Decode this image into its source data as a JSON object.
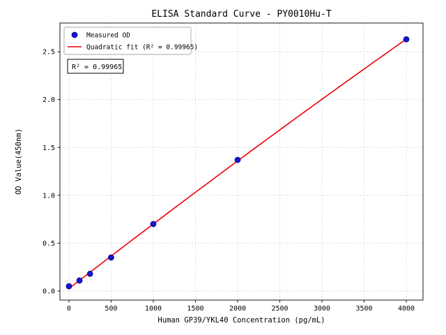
{
  "chart_data": {
    "type": "scatter",
    "title": "ELISA Standard Curve - PY0010Hu-T",
    "xlabel": "Human GP39/YKL40 Concentration (pg/mL)",
    "ylabel": "OD Value(450nm)",
    "x": [
      0,
      125,
      250,
      500,
      1000,
      2000,
      4000
    ],
    "y": [
      0.05,
      0.11,
      0.18,
      0.35,
      0.7,
      1.37,
      2.63
    ],
    "series": [
      {
        "name": "Measured OD",
        "type": "point"
      },
      {
        "name": "Quadratic fit (R² = 0.99965)",
        "type": "line"
      }
    ],
    "fit": {
      "kind": "quadratic",
      "r_squared": "0.99965"
    },
    "xlim": [
      -107,
      4198
    ],
    "ylim": [
      -0.095,
      2.8
    ],
    "xticks": [
      0,
      500,
      1000,
      1500,
      2000,
      2500,
      3000,
      3500,
      4000
    ],
    "yticks": [
      0.0,
      0.5,
      1.0,
      1.5,
      2.0,
      2.5
    ],
    "grid": true,
    "legend": {
      "position": "upper-left",
      "entries": [
        {
          "label": "Measured OD",
          "marker": "circle-icon",
          "color": "#1515cd"
        },
        {
          "label": "Quadratic fit (R² = 0.99965)",
          "marker": "line-icon",
          "color": "#ee0000"
        }
      ]
    },
    "annotation": "R² = 0.99965",
    "colors": {
      "point": "#1515cd",
      "point_edge": "#00008b",
      "line": "#ee0000",
      "grid": "#c9c9c9",
      "axis": "#000000",
      "legend_border": "#aaaaaa",
      "background": "#ffffff"
    }
  }
}
